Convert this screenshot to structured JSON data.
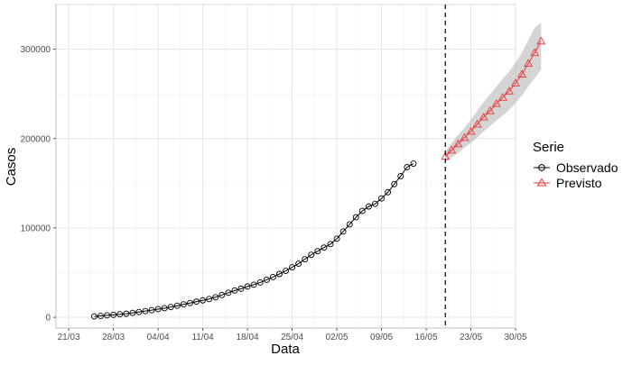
{
  "chart_data": {
    "type": "line",
    "title": "",
    "xlabel": "Data",
    "ylabel": "Casos",
    "x_range_days": [
      -2,
      70
    ],
    "ylim": [
      -12000,
      350000
    ],
    "x_ticks": [
      {
        "day": 0,
        "label": "21/03"
      },
      {
        "day": 7,
        "label": "28/03"
      },
      {
        "day": 14,
        "label": "04/04"
      },
      {
        "day": 21,
        "label": "11/04"
      },
      {
        "day": 28,
        "label": "18/04"
      },
      {
        "day": 35,
        "label": "25/04"
      },
      {
        "day": 42,
        "label": "02/05"
      },
      {
        "day": 49,
        "label": "09/05"
      },
      {
        "day": 56,
        "label": "16/05"
      },
      {
        "day": 63,
        "label": "23/05"
      },
      {
        "day": 70,
        "label": "30/05"
      }
    ],
    "y_ticks": [
      {
        "value": 0,
        "label": "0"
      },
      {
        "value": 100000,
        "label": "100000"
      },
      {
        "value": 200000,
        "label": "200000"
      },
      {
        "value": 300000,
        "label": "300000"
      }
    ],
    "forecast_start_day": 59,
    "legend": {
      "title": "Serie",
      "position": "right"
    },
    "series": [
      {
        "name": "Observado",
        "marker": "circle",
        "color": "#000000",
        "start_day": 4,
        "values": [
          1000,
          1600,
          2200,
          2800,
          3400,
          4000,
          5000,
          6000,
          7000,
          8000,
          9200,
          10200,
          11500,
          13000,
          14500,
          16000,
          17500,
          19000,
          20500,
          22500,
          25000,
          27500,
          30000,
          32000,
          34500,
          36500,
          39000,
          42000,
          45000,
          48500,
          52000,
          56000,
          60000,
          65000,
          70000,
          74000,
          78000,
          82000,
          88000,
          96000,
          104000,
          112000,
          119000,
          124000,
          127000,
          133000,
          140000,
          149000,
          158000,
          168000,
          172000
        ]
      },
      {
        "name": "Previsto",
        "marker": "triangle",
        "color": "#e8383b",
        "start_day": 59,
        "values": [
          180000,
          187000,
          194000,
          201000,
          208000,
          216000,
          224000,
          231000,
          239000,
          246000,
          253000,
          262000,
          272000,
          284000,
          296000,
          309000
        ],
        "lower": [
          174000,
          179000,
          184000,
          190000,
          195000,
          201000,
          208000,
          214000,
          220000,
          226000,
          232000,
          240000,
          248000,
          258000,
          268000,
          277000
        ],
        "upper": [
          186000,
          195000,
          204000,
          212000,
          221000,
          231000,
          241000,
          249000,
          258000,
          267000,
          275000,
          285000,
          296000,
          310000,
          324000,
          330000
        ]
      }
    ]
  }
}
